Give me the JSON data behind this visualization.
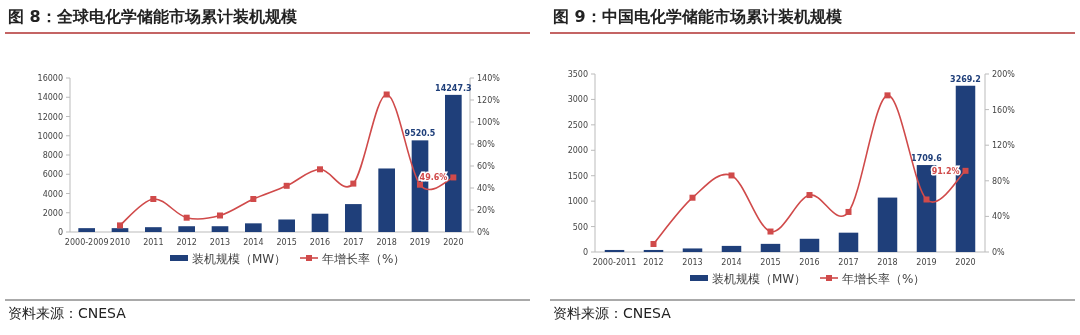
{
  "chart_data": [
    {
      "type": "bar",
      "title": "图 8：全球电化学储能市场累计装机规模",
      "categories": [
        "2000-2009",
        "2010",
        "2011",
        "2012",
        "2013",
        "2014",
        "2015",
        "2016",
        "2017",
        "2018",
        "2019",
        "2020"
      ],
      "series": [
        {
          "name": "装机规模（MW）",
          "type": "bar",
          "color": "#1f3f7a",
          "values": [
            400,
            400,
            500,
            600,
            600,
            900,
            1300,
            1900,
            2900,
            6600,
            9520.5,
            14247.3
          ],
          "value_labels": [
            null,
            null,
            null,
            null,
            null,
            null,
            null,
            null,
            null,
            null,
            "9520.5",
            "14247.3"
          ]
        },
        {
          "name": "年增长率（%）",
          "type": "line",
          "axis": "y2",
          "color": "#d04a4a",
          "values": [
            null,
            6,
            30,
            13,
            15,
            30,
            42,
            57,
            44,
            125,
            43,
            49.6
          ],
          "value_labels": [
            null,
            null,
            null,
            null,
            null,
            null,
            null,
            null,
            null,
            null,
            null,
            "49.6%"
          ]
        }
      ],
      "ylim": [
        0,
        16000
      ],
      "yticks": [
        0,
        2000,
        4000,
        6000,
        8000,
        10000,
        12000,
        14000,
        16000
      ],
      "y2lim": [
        0,
        140
      ],
      "y2ticks": [
        {
          "value": 0,
          "label": "0%"
        },
        {
          "value": 20,
          "label": "20%"
        },
        {
          "value": 40,
          "label": "40%"
        },
        {
          "value": 60,
          "label": "60%"
        },
        {
          "value": 80,
          "label": "80%"
        },
        {
          "value": 100,
          "label": "100%"
        },
        {
          "value": 120,
          "label": "120%"
        },
        {
          "value": 140,
          "label": "140%"
        }
      ],
      "legend": "bottom",
      "marker": "square",
      "annotations": [
        "资料来源：CNESA"
      ]
    },
    {
      "type": "bar",
      "title": "图 9：中国电化学储能市场累计装机规模",
      "categories": [
        "2000-2011",
        "2012",
        "2013",
        "2014",
        "2015",
        "2016",
        "2017",
        "2018",
        "2019",
        "2020"
      ],
      "series": [
        {
          "name": "装机规模（MW）",
          "type": "bar",
          "color": "#1f3f7a",
          "values": [
            40,
            40,
            70,
            120,
            160,
            260,
            380,
            1070,
            1709.6,
            3269.2
          ],
          "value_labels": [
            null,
            null,
            null,
            null,
            null,
            null,
            null,
            null,
            "1709.6",
            "3269.2"
          ]
        },
        {
          "name": "年增长率（%）",
          "type": "line",
          "axis": "y2",
          "color": "#d04a4a",
          "values": [
            null,
            9,
            61,
            86,
            23,
            64,
            45,
            176,
            59,
            91.2
          ],
          "value_labels": [
            null,
            null,
            null,
            null,
            null,
            null,
            null,
            null,
            null,
            "91.2%"
          ]
        }
      ],
      "ylim": [
        0,
        3500
      ],
      "yticks": [
        0,
        500,
        1000,
        1500,
        2000,
        2500,
        3000,
        3500
      ],
      "y2lim": [
        0,
        200
      ],
      "y2ticks": [
        {
          "value": 0,
          "label": "0%"
        },
        {
          "value": 40,
          "label": "40%"
        },
        {
          "value": 80,
          "label": "80%"
        },
        {
          "value": 120,
          "label": "120%"
        },
        {
          "value": 160,
          "label": "160%"
        },
        {
          "value": 200,
          "label": "200%"
        }
      ],
      "legend": "bottom",
      "marker": "square",
      "annotations": [
        "资料来源：CNESA"
      ]
    }
  ]
}
